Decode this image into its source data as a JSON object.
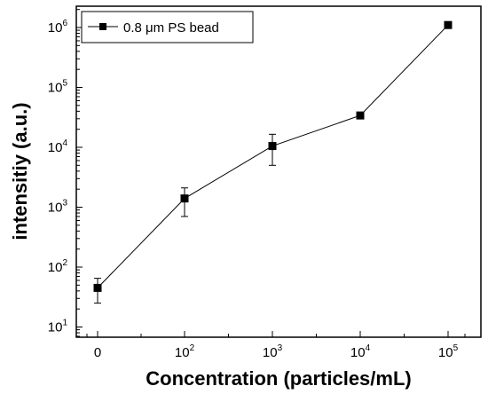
{
  "chart_data": {
    "type": "line",
    "title": "",
    "xlabel": "Concentration (particles/mL)",
    "ylabel": "intensitiy (a.u.)",
    "y_scale": "log",
    "ylim": [
      5,
      2000000
    ],
    "grid": false,
    "legend_position": "top-left",
    "color": "#000000",
    "x_ticks": [
      {
        "base": "0",
        "exp": ""
      },
      {
        "base": "10",
        "exp": "2"
      },
      {
        "base": "10",
        "exp": "3"
      },
      {
        "base": "10",
        "exp": "4"
      },
      {
        "base": "10",
        "exp": "5"
      }
    ],
    "y_ticks": [
      {
        "value": 10,
        "base": "10",
        "exp": "1"
      },
      {
        "value": 100,
        "base": "10",
        "exp": "2"
      },
      {
        "value": 1000,
        "base": "10",
        "exp": "3"
      },
      {
        "value": 10000,
        "base": "10",
        "exp": "4"
      },
      {
        "value": 100000,
        "base": "10",
        "exp": "5"
      },
      {
        "value": 1000000,
        "base": "10",
        "exp": "6"
      }
    ],
    "series": [
      {
        "name": "0.8 μm PS bead",
        "marker": "square",
        "points": [
          {
            "x": "0",
            "y": 45,
            "err_low": 25,
            "err_high": 65
          },
          {
            "x": "100",
            "y": 1400,
            "err_low": 700,
            "err_high": 2100
          },
          {
            "x": "1000",
            "y": 10500,
            "err_low": 5000,
            "err_high": 16500
          },
          {
            "x": "10000",
            "y": 34000,
            "err_low": 32000,
            "err_high": 36000
          },
          {
            "x": "100000",
            "y": 1100000,
            "err_low": 1050000,
            "err_high": 1150000
          }
        ]
      }
    ]
  }
}
